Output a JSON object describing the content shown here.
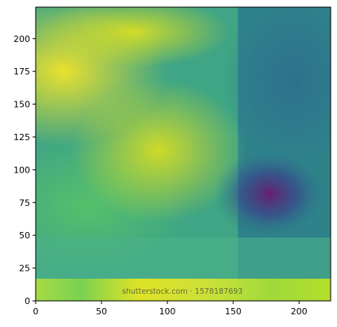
{
  "chart_data": {
    "type": "heatmap",
    "description_free": true,
    "title": "",
    "xlabel": "",
    "ylabel": "",
    "xlim": [
      0,
      224
    ],
    "ylim": [
      0,
      224
    ],
    "x_ticks": [
      0,
      50,
      100,
      150,
      200
    ],
    "y_ticks": [
      0,
      25,
      50,
      75,
      100,
      125,
      150,
      175,
      200
    ],
    "colormap": "viridis",
    "grid": false,
    "legend": "none"
  },
  "watermark": {
    "text": "shutterstock.com · 1578187693"
  },
  "colors": {
    "viridis_low": "#440154",
    "viridis_mid": "#21918c",
    "viridis_high": "#fde725"
  }
}
